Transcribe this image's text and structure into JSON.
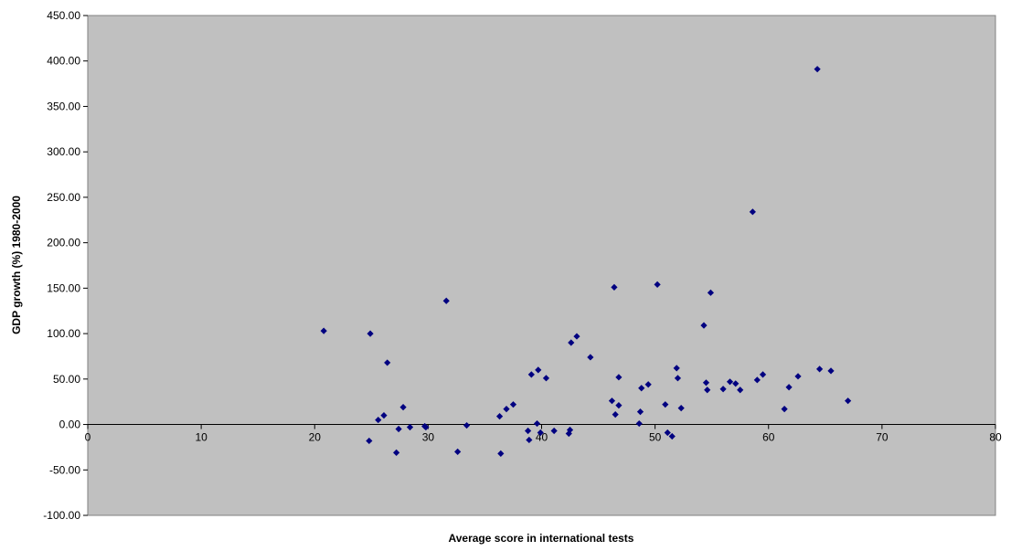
{
  "chart_data": {
    "type": "scatter",
    "title": "",
    "xlabel": "Average score in international tests",
    "ylabel": "GDP growth (%) 1980-2000",
    "xlim": [
      0,
      80
    ],
    "ylim": [
      -100,
      450
    ],
    "x_ticks": [
      0,
      10,
      20,
      30,
      40,
      50,
      60,
      70,
      80
    ],
    "x_tick_labels": [
      "0",
      "10",
      "20",
      "30",
      "40",
      "50",
      "60",
      "70",
      "80"
    ],
    "y_ticks": [
      -100,
      -50,
      0,
      50,
      100,
      150,
      200,
      250,
      300,
      350,
      400,
      450
    ],
    "y_tick_labels": [
      "-100.00",
      "-50.00",
      "0.00",
      "50.00",
      "100.00",
      "150.00",
      "200.00",
      "250.00",
      "300.00",
      "350.00",
      "400.00",
      "450.00"
    ],
    "grid": false,
    "legend": "none",
    "plot_background": "#c0c0c0",
    "marker_color": "#000080",
    "x": [
      20.8,
      24.8,
      24.9,
      25.6,
      26.1,
      26.4,
      27.2,
      27.4,
      27.8,
      28.4,
      29.7,
      29.8,
      31.6,
      32.6,
      33.4,
      36.3,
      36.4,
      36.9,
      37.5,
      38.8,
      38.9,
      39.1,
      39.6,
      39.7,
      39.9,
      40.4,
      41.1,
      42.4,
      42.5,
      42.6,
      43.1,
      44.3,
      46.2,
      46.4,
      46.5,
      46.8,
      46.8,
      48.6,
      48.7,
      48.8,
      49.4,
      50.2,
      50.9,
      51.1,
      51.5,
      51.9,
      52.0,
      52.3,
      54.3,
      54.5,
      54.6,
      54.9,
      56.0,
      56.6,
      57.1,
      57.5,
      58.6,
      59.0,
      59.5,
      61.4,
      61.8,
      62.6,
      64.3,
      64.5,
      65.5,
      67.0
    ],
    "y": [
      103,
      -18,
      100,
      5,
      10,
      68,
      -31,
      -5,
      19,
      -3,
      -2,
      -3,
      136,
      -30,
      -1,
      9,
      -32,
      17,
      22,
      -7,
      -17,
      55,
      1,
      60,
      -9,
      51,
      -7,
      -10,
      -6,
      90,
      97,
      74,
      26,
      151,
      11,
      21,
      52,
      1,
      14,
      40,
      44,
      154,
      22,
      -9,
      -13,
      62,
      51,
      18,
      109,
      46,
      38,
      145,
      39,
      47,
      45,
      38,
      234,
      49,
      55,
      17,
      41,
      53,
      391,
      61,
      59,
      26
    ]
  }
}
